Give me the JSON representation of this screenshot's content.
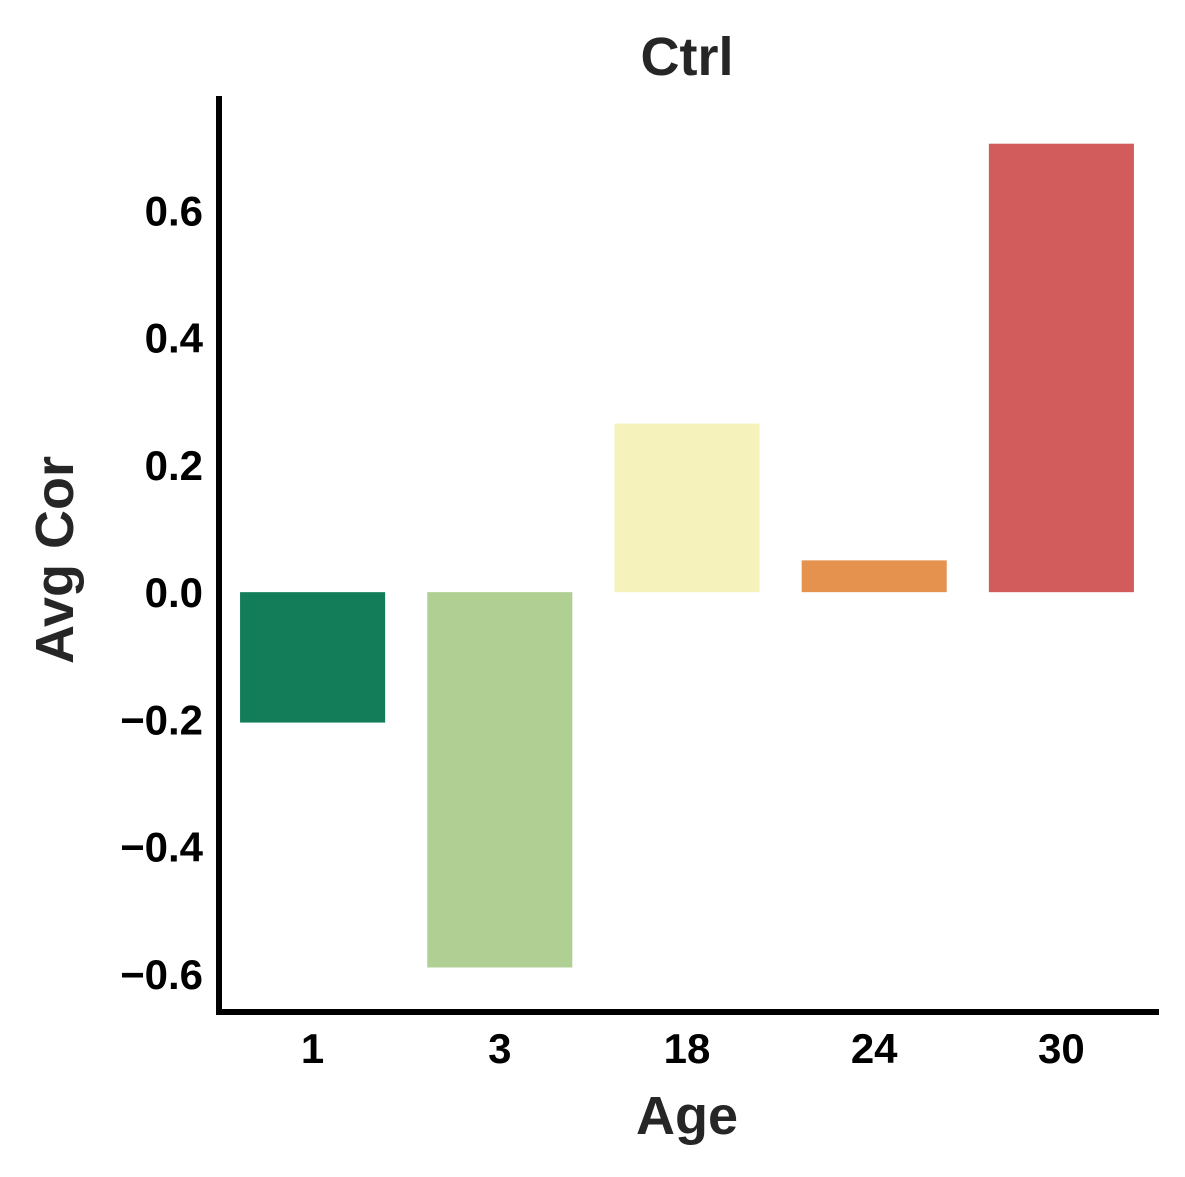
{
  "chart_data": {
    "type": "bar",
    "title": "Ctrl",
    "xlabel": "Age",
    "ylabel": "Avg Cor",
    "categories": [
      "1",
      "3",
      "18",
      "24",
      "30"
    ],
    "values": [
      -0.205,
      -0.59,
      0.265,
      0.05,
      0.705
    ],
    "colors": [
      "#137d5a",
      "#b0cf93",
      "#f5f2bb",
      "#e5924f",
      "#d25c5c"
    ],
    "ylim": [
      -0.66,
      0.78
    ],
    "yticks": [
      -0.6,
      -0.4,
      -0.2,
      0.0,
      0.2,
      0.4,
      0.6
    ],
    "ytick_labels": [
      "−0.6",
      "−0.4",
      "−0.2",
      "0.0",
      "0.2",
      "0.4",
      "0.6"
    ],
    "grid": false,
    "legend": "none"
  }
}
